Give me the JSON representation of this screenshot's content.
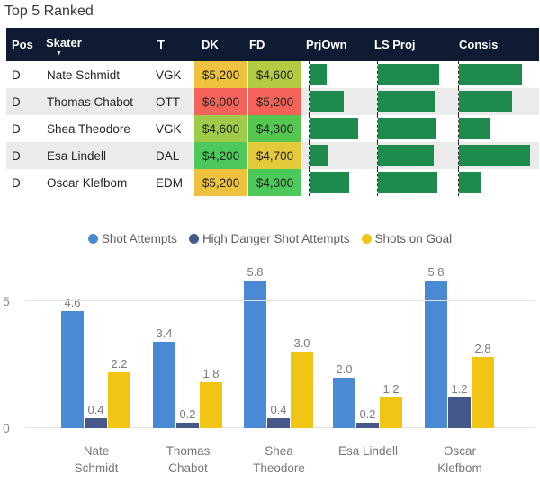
{
  "title": "Top 5 Ranked",
  "colors": {
    "header_bg": "#0f1b33",
    "header_text": "#ffffff",
    "alt_row_bg": "#ebebeb",
    "data_bar_green": "#1e8a4c",
    "cell_red": "#f4635a",
    "cell_amber": "#eec23f",
    "cell_yellow": "#e2ca3b",
    "cell_yellow_green": "#b3cb42",
    "cell_green": "#4cc95a"
  },
  "table": {
    "columns": [
      "Pos",
      "Skater",
      "T",
      "DK",
      "FD",
      "PrjOwn",
      "LS Proj",
      "Consis"
    ],
    "sorted_column": "Skater",
    "sort_direction": "descending",
    "rows": [
      {
        "pos": "D",
        "skater": "Nate Schmidt",
        "team": "VGK",
        "dk": "$5,200",
        "dk_color": "#eec23f",
        "fd": "$4,600",
        "fd_color": "#b3cb42",
        "prjown_pct": 28,
        "lsproj_pct": 84,
        "consis_pct": 79
      },
      {
        "pos": "D",
        "skater": "Thomas Chabot",
        "team": "OTT",
        "dk": "$6,000",
        "dk_color": "#f4635a",
        "fd": "$5,200",
        "fd_color": "#f4635a",
        "prjown_pct": 57,
        "lsproj_pct": 78,
        "consis_pct": 66
      },
      {
        "pos": "D",
        "skater": "Shea Theodore",
        "team": "VGK",
        "dk": "$4,600",
        "dk_color": "#9ecb49",
        "fd": "$4,300",
        "fd_color": "#55c64f",
        "prjown_pct": 81,
        "lsproj_pct": 80,
        "consis_pct": 39
      },
      {
        "pos": "D",
        "skater": "Esa Lindell",
        "team": "DAL",
        "dk": "$4,200",
        "dk_color": "#4cc95a",
        "fd": "$4,700",
        "fd_color": "#e2ca3b",
        "prjown_pct": 30,
        "lsproj_pct": 76,
        "consis_pct": 89
      },
      {
        "pos": "D",
        "skater": "Oscar Klefbom",
        "team": "EDM",
        "dk": "$5,200",
        "dk_color": "#eec23f",
        "fd": "$4,300",
        "fd_color": "#4cc95a",
        "prjown_pct": 66,
        "lsproj_pct": 82,
        "consis_pct": 28
      }
    ]
  },
  "chart_data": {
    "type": "bar",
    "title": "",
    "categories": [
      "Nate Schmidt",
      "Thomas Chabot",
      "Shea Theodore",
      "Esa Lindell",
      "Oscar Klefbom"
    ],
    "x_label_lines": [
      [
        "Nate",
        "Schmidt"
      ],
      [
        "Thomas",
        "Chabot"
      ],
      [
        "Shea",
        "Theodore"
      ],
      [
        "Esa Lindell"
      ],
      [
        "Oscar",
        "Klefbom"
      ]
    ],
    "series": [
      {
        "name": "Shot Attempts",
        "color": "#4a89d3",
        "values": [
          4.6,
          3.4,
          5.8,
          2.0,
          5.8
        ]
      },
      {
        "name": "High Danger Shot Attempts",
        "color": "#45588a",
        "values": [
          0.4,
          0.2,
          0.4,
          0.2,
          1.2
        ]
      },
      {
        "name": "Shots on Goal",
        "color": "#f0c514",
        "values": [
          2.2,
          1.8,
          3.0,
          1.2,
          2.8
        ]
      }
    ],
    "ylim": [
      0,
      5
    ],
    "yticks": [
      0,
      5
    ],
    "grid": true,
    "legend_position": "top"
  }
}
